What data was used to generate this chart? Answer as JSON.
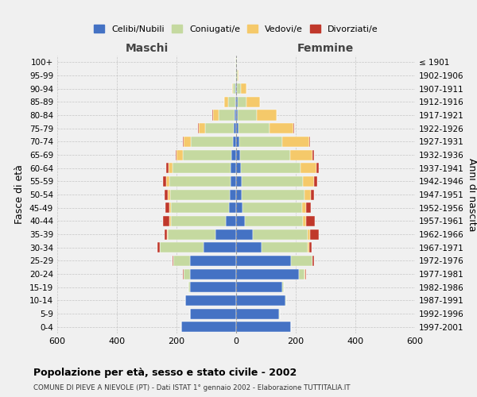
{
  "age_groups": [
    "0-4",
    "5-9",
    "10-14",
    "15-19",
    "20-24",
    "25-29",
    "30-34",
    "35-39",
    "40-44",
    "45-49",
    "50-54",
    "55-59",
    "60-64",
    "65-69",
    "70-74",
    "75-79",
    "80-84",
    "85-89",
    "90-94",
    "95-99",
    "100+"
  ],
  "birth_years": [
    "1997-2001",
    "1992-1996",
    "1987-1991",
    "1982-1986",
    "1977-1981",
    "1972-1976",
    "1967-1971",
    "1962-1966",
    "1957-1961",
    "1952-1956",
    "1947-1951",
    "1942-1946",
    "1937-1941",
    "1932-1936",
    "1927-1931",
    "1922-1926",
    "1917-1921",
    "1912-1916",
    "1907-1911",
    "1902-1906",
    "≤ 1901"
  ],
  "male": {
    "celibi": [
      185,
      155,
      170,
      155,
      155,
      155,
      110,
      70,
      35,
      25,
      22,
      20,
      18,
      15,
      12,
      8,
      5,
      3,
      2,
      1,
      1
    ],
    "coniugati": [
      0,
      1,
      2,
      5,
      20,
      55,
      145,
      160,
      185,
      195,
      200,
      205,
      195,
      165,
      140,
      95,
      55,
      25,
      8,
      2,
      1
    ],
    "vedovi": [
      0,
      0,
      0,
      0,
      1,
      1,
      2,
      3,
      4,
      5,
      8,
      10,
      15,
      20,
      25,
      22,
      18,
      12,
      4,
      1,
      0
    ],
    "divorziati": [
      0,
      0,
      0,
      0,
      2,
      3,
      8,
      8,
      22,
      12,
      10,
      10,
      8,
      4,
      3,
      2,
      1,
      1,
      0,
      0,
      0
    ]
  },
  "female": {
    "nubili": [
      185,
      145,
      165,
      155,
      210,
      185,
      85,
      55,
      30,
      20,
      18,
      18,
      15,
      12,
      10,
      8,
      5,
      4,
      3,
      1,
      1
    ],
    "coniugate": [
      0,
      1,
      2,
      5,
      20,
      70,
      155,
      185,
      195,
      200,
      210,
      205,
      200,
      170,
      145,
      105,
      65,
      30,
      12,
      3,
      1
    ],
    "vedove": [
      0,
      0,
      0,
      1,
      2,
      2,
      5,
      8,
      10,
      15,
      22,
      38,
      55,
      75,
      90,
      80,
      65,
      45,
      20,
      5,
      1
    ],
    "divorziate": [
      0,
      0,
      0,
      0,
      2,
      5,
      8,
      30,
      30,
      15,
      12,
      10,
      8,
      4,
      3,
      2,
      1,
      1,
      0,
      0,
      0
    ]
  },
  "colors": {
    "celibi": "#4472c4",
    "coniugati": "#c5d9a0",
    "vedovi": "#f5c96a",
    "divorziati": "#c0382b"
  },
  "title": "Popolazione per età, sesso e stato civile - 2002",
  "subtitle": "COMUNE DI PIEVE A NIEVOLE (PT) - Dati ISTAT 1° gennaio 2002 - Elaborazione TUTTITALIA.IT",
  "xlabel_left": "Maschi",
  "xlabel_right": "Femmine",
  "ylabel_left": "Fasce di età",
  "ylabel_right": "Anni di nascita",
  "xlim": 600,
  "background_color": "#f0f0f0",
  "legend_labels": [
    "Celibi/Nubili",
    "Coniugati/e",
    "Vedovi/e",
    "Divorziati/e"
  ]
}
